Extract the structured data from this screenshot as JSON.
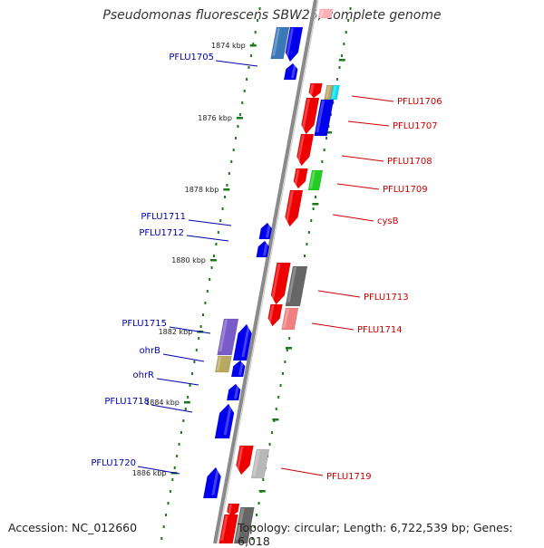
{
  "title": "Pseudomonas fluorescens SBW25, complete genome",
  "footer": {
    "accession": "Accession: NC_012660",
    "topology": "Topology: circular; Length: 6,722,539 bp; Genes: 6,018"
  },
  "colors": {
    "backbone": "#8a8a8a",
    "forward_label": "#cc0000",
    "reverse_label": "#0000aa",
    "ticks": "#1a7a1a"
  },
  "scale": {
    "unit": "kbp",
    "ticks": [
      {
        "kbp": 1874,
        "label": "1874 kbp"
      },
      {
        "kbp": 1876,
        "label": "1876 kbp"
      },
      {
        "kbp": 1878,
        "label": "1878 kbp"
      },
      {
        "kbp": 1880,
        "label": "1880 kbp"
      },
      {
        "kbp": 1882,
        "label": "1882 kbp"
      },
      {
        "kbp": 1884,
        "label": "1884 kbp"
      },
      {
        "kbp": 1886,
        "label": "1886 kbp"
      }
    ]
  },
  "genes": [
    {
      "name": "PFLU1705",
      "strand": "reverse"
    },
    {
      "name": "PFLU1706",
      "strand": "forward"
    },
    {
      "name": "PFLU1707",
      "strand": "forward"
    },
    {
      "name": "PFLU1708",
      "strand": "forward"
    },
    {
      "name": "PFLU1709",
      "strand": "forward"
    },
    {
      "name": "cysB",
      "strand": "forward"
    },
    {
      "name": "PFLU1711",
      "strand": "reverse"
    },
    {
      "name": "PFLU1712",
      "strand": "reverse"
    },
    {
      "name": "PFLU1713",
      "strand": "forward"
    },
    {
      "name": "PFLU1714",
      "strand": "forward"
    },
    {
      "name": "PFLU1715",
      "strand": "reverse"
    },
    {
      "name": "ohrB",
      "strand": "reverse"
    },
    {
      "name": "ohrR",
      "strand": "reverse"
    },
    {
      "name": "PFLU1718",
      "strand": "reverse"
    },
    {
      "name": "PFLU1719",
      "strand": "forward"
    },
    {
      "name": "PFLU1720",
      "strand": "reverse"
    }
  ]
}
